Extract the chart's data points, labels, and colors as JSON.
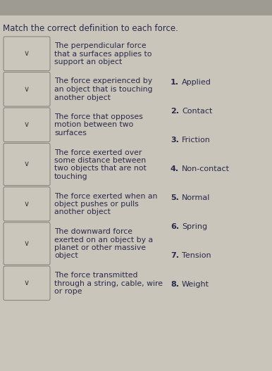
{
  "title": "Match the correct definition to each force.",
  "background_color": "#c9c5bb",
  "top_bar_color": "#9e9b92",
  "text_color": "#2a2a4a",
  "box_face_color": "#cac6bc",
  "box_edge_color": "#888880",
  "definitions": [
    [
      "The perpendicular force",
      "that a surfaces applies to",
      "support an object"
    ],
    [
      "The force experienced by",
      "an object that is touching",
      "another object"
    ],
    [
      "The force that opposes",
      "motion between two",
      "surfaces"
    ],
    [
      "The force exerted over",
      "some distance between",
      "two objects that are not",
      "touching"
    ],
    [
      "The force exerted when an",
      "object pushes or pulls",
      "another object"
    ],
    [
      "The downward force",
      "exerted on an object by a",
      "planet or other massive",
      "object"
    ],
    [
      "The force transmitted",
      "through a string, cable, wire",
      "or rope"
    ]
  ],
  "answers": [
    {
      "num": "1.",
      "label": "Applied"
    },
    {
      "num": "2.",
      "label": "Contact"
    },
    {
      "num": "3.",
      "label": "Friction"
    },
    {
      "num": "4.",
      "label": "Non-contact"
    },
    {
      "num": "5.",
      "label": "Normal"
    },
    {
      "num": "6.",
      "label": "Spring"
    },
    {
      "num": "7.",
      "label": "Tension"
    },
    {
      "num": "8.",
      "label": "Weight"
    }
  ],
  "title_fontsize": 8.5,
  "def_fontsize": 7.8,
  "ans_fontsize": 8.0
}
